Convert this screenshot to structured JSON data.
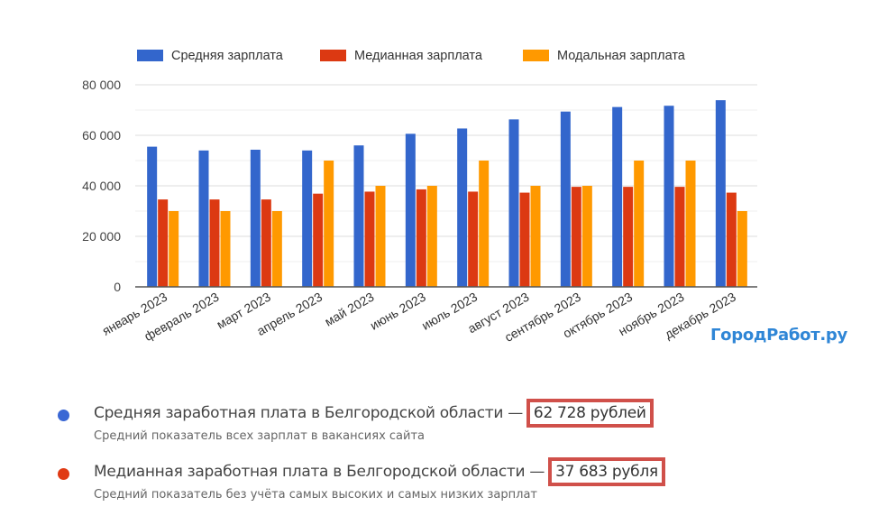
{
  "chart_data": {
    "type": "bar",
    "categories": [
      "январь 2023",
      "февраль 2023",
      "март 2023",
      "апрель 2023",
      "май 2023",
      "июнь 2023",
      "июль 2023",
      "август 2023",
      "сентябрь 2023",
      "октябрь 2023",
      "ноябрь 2023",
      "декабрь 2023"
    ],
    "series": [
      {
        "name": "Средняя зарплата",
        "color": "#3366cc",
        "values": [
          55500,
          54000,
          54300,
          54000,
          56000,
          60600,
          62700,
          66300,
          69400,
          71200,
          71700,
          73900
        ]
      },
      {
        "name": "Медианная зарплата",
        "color": "#dc3912",
        "values": [
          34600,
          34600,
          34600,
          36900,
          37700,
          38600,
          37700,
          37300,
          39600,
          39600,
          39600,
          37300
        ]
      },
      {
        "name": "Модальная зарплата",
        "color": "#ff9900",
        "values": [
          30000,
          30000,
          30000,
          50000,
          40000,
          40000,
          50000,
          40000,
          40000,
          50000,
          50000,
          30000
        ]
      }
    ],
    "ylim": [
      0,
      80000
    ],
    "yticks": [
      "0",
      "20 000",
      "40 000",
      "60 000",
      "80 000"
    ],
    "grid": true,
    "legend": "top"
  },
  "watermark": "ГородРабот.ру",
  "info": [
    {
      "title": "Средняя заработная плата в Белгородской области —",
      "value": "62 728 рублей",
      "subtitle": "Средний показатель всех зарплат в вакансиях сайта",
      "color": "#3a67d4"
    },
    {
      "title": "Медианная заработная плата в Белгородской области —",
      "value": "37 683 рубля",
      "subtitle": "Средний показатель без учёта самых высоких и самых низких зарплат",
      "color": "#e03a14"
    }
  ]
}
